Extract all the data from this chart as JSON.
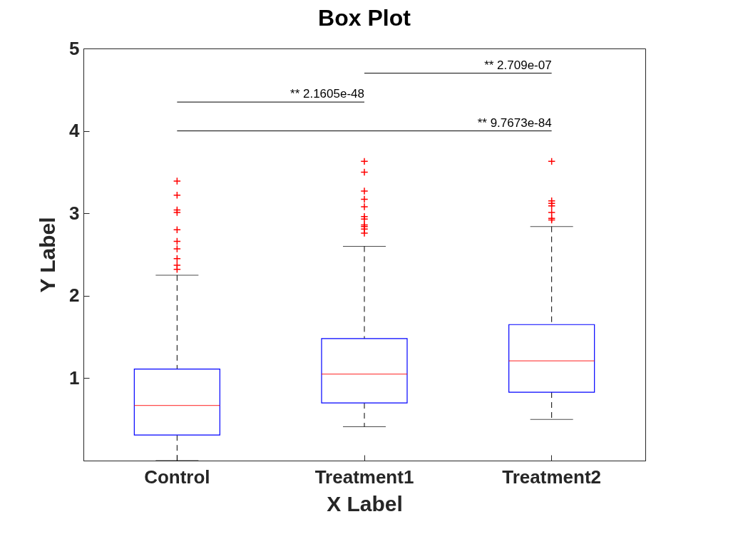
{
  "chart_data": {
    "type": "box",
    "title": "Box Plot",
    "xlabel": "X Label",
    "ylabel": "Y Label",
    "categories": [
      "Control",
      "Treatment1",
      "Treatment2"
    ],
    "ylim": [
      0,
      5
    ],
    "yticks": [
      1,
      2,
      3,
      4,
      5
    ],
    "grid": false,
    "marker": "cross",
    "boxes": [
      {
        "low": 0.0,
        "q1": 0.31,
        "median": 0.67,
        "q3": 1.11,
        "high": 2.25,
        "outliers": [
          3.39,
          3.22,
          3.04,
          3.01,
          2.8,
          2.66,
          2.57,
          2.45,
          2.37,
          2.32
        ]
      },
      {
        "low": 0.41,
        "q1": 0.7,
        "median": 1.05,
        "q3": 1.48,
        "high": 2.6,
        "outliers": [
          3.63,
          3.5,
          3.27,
          3.17,
          3.08,
          2.96,
          2.93,
          2.86,
          2.84,
          2.81,
          2.76
        ]
      },
      {
        "low": 0.5,
        "q1": 0.83,
        "median": 1.21,
        "q3": 1.65,
        "high": 2.84,
        "outliers": [
          3.63,
          3.15,
          3.12,
          3.09,
          3.01,
          2.94,
          2.92
        ]
      }
    ],
    "annotations": [
      "** 2.709e-07",
      "** 2.1605e-48",
      "** 9.7673e-84"
    ]
  }
}
